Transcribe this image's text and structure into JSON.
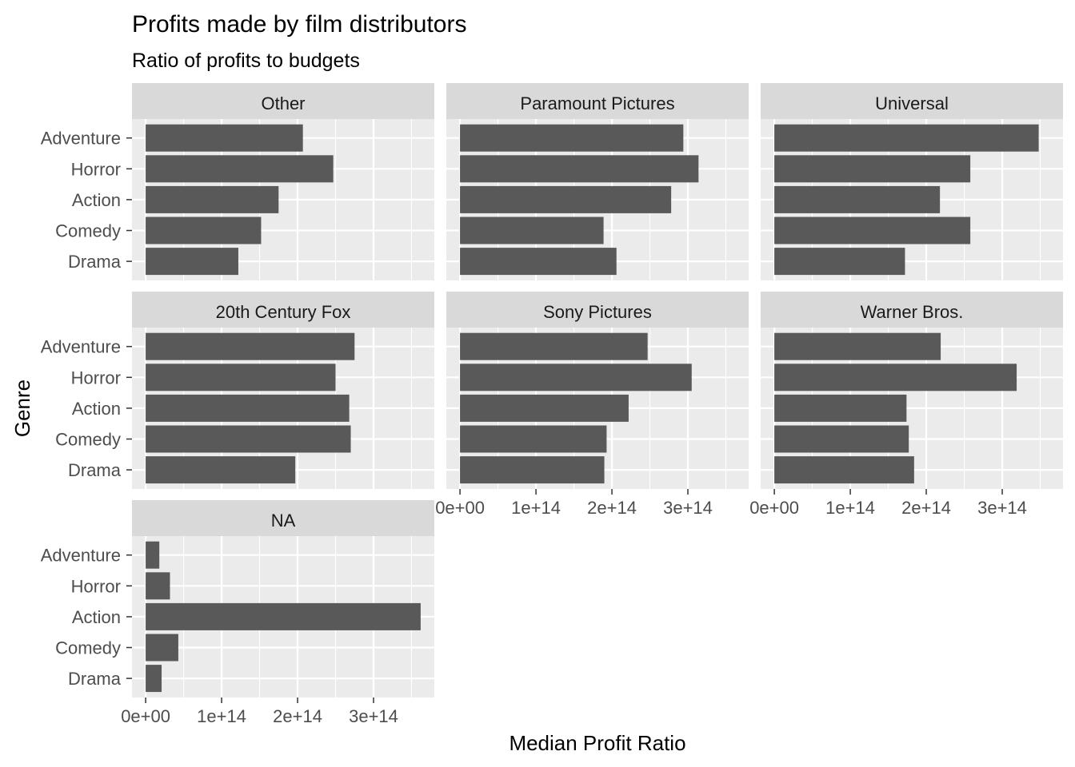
{
  "chart_data": {
    "type": "bar",
    "orientation": "horizontal",
    "title": "Profits made by film distributors",
    "subtitle": "Ratio of profits to budgets",
    "xlabel": "Median Profit Ratio",
    "ylabel": "Genre",
    "categories": [
      "Adventure",
      "Horror",
      "Action",
      "Comedy",
      "Drama"
    ],
    "xlim": [
      -18000000000000.0,
      380000000000000.0
    ],
    "xticks": [
      0,
      100000000000000.0,
      200000000000000.0,
      300000000000000.0
    ],
    "xtick_labels": [
      "0e+00",
      "1e+14",
      "2e+14",
      "3e+14"
    ],
    "grid": true,
    "facets": [
      {
        "name": "Other",
        "values": [
          207000000000000.0,
          247000000000000.0,
          175000000000000.0,
          152000000000000.0,
          122000000000000.0
        ]
      },
      {
        "name": "Paramount Pictures",
        "values": [
          294000000000000.0,
          314000000000000.0,
          278000000000000.0,
          189000000000000.0,
          206000000000000.0
        ]
      },
      {
        "name": "Universal",
        "values": [
          348000000000000.0,
          258000000000000.0,
          218000000000000.0,
          258000000000000.0,
          172000000000000.0
        ]
      },
      {
        "name": "20th Century Fox",
        "values": [
          275000000000000.0,
          250000000000000.0,
          268000000000000.0,
          270000000000000.0,
          197000000000000.0
        ]
      },
      {
        "name": "Sony Pictures",
        "values": [
          247000000000000.0,
          305000000000000.0,
          222000000000000.0,
          193000000000000.0,
          190000000000000.0
        ]
      },
      {
        "name": "Warner Bros.",
        "values": [
          219000000000000.0,
          319000000000000.0,
          174000000000000.0,
          177000000000000.0,
          184000000000000.0
        ]
      },
      {
        "name": "NA",
        "values": [
          18000000000000.0,
          32000000000000.0,
          362000000000000.0,
          43000000000000.0,
          21000000000000.0
        ]
      }
    ]
  },
  "colors": {
    "panel_bg": "#ebebeb",
    "strip_bg": "#d9d9d9",
    "bar": "#595959",
    "grid": "#ffffff",
    "axis_text": "#4d4d4d",
    "text": "#000000"
  }
}
